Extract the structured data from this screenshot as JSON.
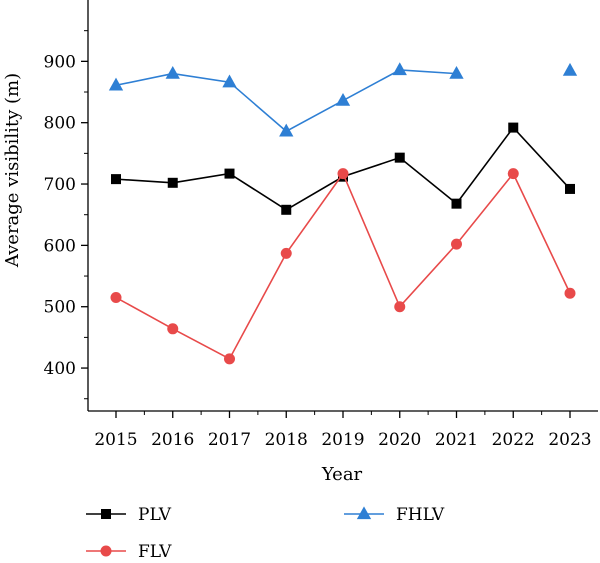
{
  "chart_data": {
    "type": "line",
    "title": "",
    "xlabel": "Year",
    "ylabel": "Average visibility (m)",
    "x": [
      "2015",
      "2016",
      "2017",
      "2018",
      "2019",
      "2020",
      "2021",
      "2022",
      "2023"
    ],
    "ylim": [
      330,
      1000
    ],
    "yticks": [
      400,
      500,
      600,
      700,
      800,
      900
    ],
    "grid": false,
    "legend_position": "bottom",
    "series": [
      {
        "name": "PLV",
        "color": "#000000",
        "marker": "square",
        "values": [
          708,
          702,
          717,
          658,
          712,
          743,
          668,
          792,
          692
        ]
      },
      {
        "name": "FLV",
        "color": "#e84a4a",
        "marker": "circle",
        "values": [
          515,
          464,
          415,
          587,
          717,
          500,
          602,
          717,
          522
        ]
      },
      {
        "name": "FHLV",
        "color": "#2e7fd4",
        "marker": "triangle",
        "values": [
          861,
          880,
          866,
          786,
          836,
          886,
          880,
          null,
          885
        ]
      }
    ]
  }
}
